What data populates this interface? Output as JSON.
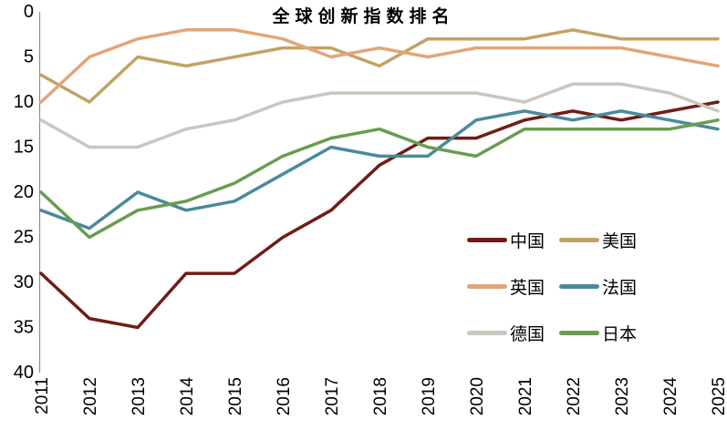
{
  "chart_data": {
    "type": "line",
    "title": "全球创新指数排名",
    "x": [
      2011,
      2012,
      2013,
      2014,
      2015,
      2016,
      2017,
      2018,
      2019,
      2020,
      2021,
      2022,
      2023,
      2024,
      2025
    ],
    "y_axis": {
      "label": "",
      "min": 0,
      "max": 40,
      "ticks": [
        0,
        5,
        10,
        15,
        20,
        25,
        30,
        35,
        40
      ],
      "inverted": true,
      "axis_line_color": "#8c8c8c"
    },
    "grid": false,
    "legend_position": "inside-right-bottom",
    "legend_columns": 2,
    "series": [
      {
        "key": "china",
        "name": "中国",
        "color": "#6f1d16",
        "values": [
          29,
          34,
          35,
          29,
          29,
          25,
          22,
          17,
          14,
          14,
          12,
          11,
          12,
          11,
          10
        ]
      },
      {
        "key": "usa",
        "name": "美国",
        "color": "#c2a266",
        "values": [
          7,
          10,
          5,
          6,
          5,
          4,
          4,
          6,
          3,
          3,
          3,
          2,
          3,
          3,
          3
        ]
      },
      {
        "key": "uk",
        "name": "英国",
        "color": "#e2a57a",
        "values": [
          10,
          5,
          3,
          2,
          2,
          3,
          5,
          4,
          5,
          4,
          4,
          4,
          4,
          5,
          6
        ]
      },
      {
        "key": "france",
        "name": "法国",
        "color": "#4a8a9b",
        "values": [
          22,
          24,
          20,
          22,
          21,
          18,
          15,
          16,
          16,
          12,
          11,
          12,
          11,
          12,
          13
        ]
      },
      {
        "key": "germany",
        "name": "德国",
        "color": "#c8c8bf",
        "values": [
          12,
          15,
          15,
          13,
          12,
          10,
          9,
          9,
          9,
          9,
          10,
          8,
          8,
          9,
          11
        ]
      },
      {
        "key": "japan",
        "name": "日本",
        "color": "#689d4f",
        "values": [
          20,
          25,
          22,
          21,
          19,
          16,
          14,
          13,
          15,
          16,
          13,
          13,
          13,
          13,
          12
        ]
      }
    ]
  }
}
